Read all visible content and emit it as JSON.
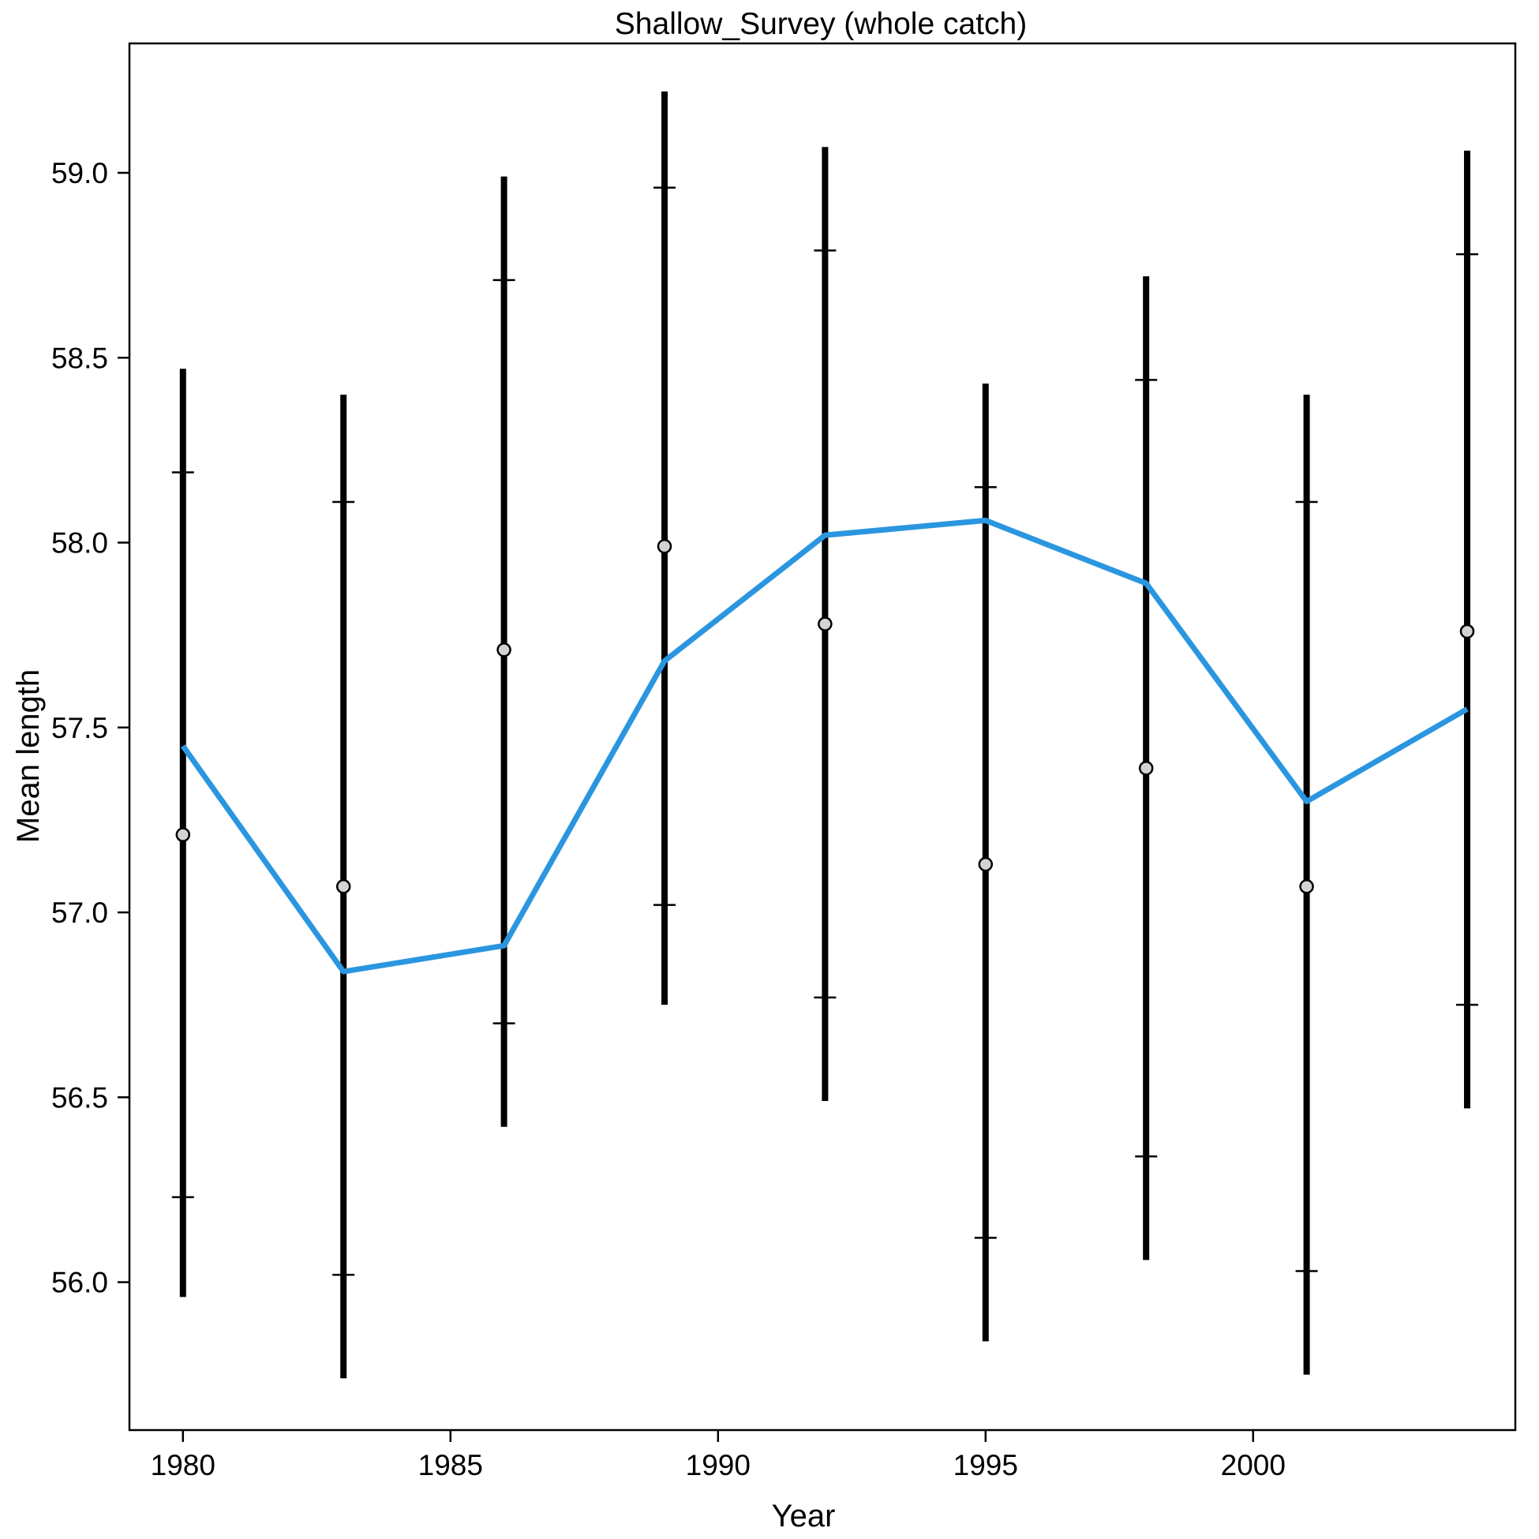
{
  "chart_data": {
    "type": "line",
    "title": "Shallow_Survey (whole catch)",
    "xlabel": "Year",
    "ylabel": "Mean length",
    "xlim": [
      1979.0,
      2004.9
    ],
    "ylim": [
      55.6,
      59.35
    ],
    "x_ticks": [
      "1980",
      "1985",
      "1990",
      "1995",
      "2000"
    ],
    "y_ticks": [
      "56.0",
      "56.5",
      "57.0",
      "57.5",
      "58.0",
      "58.5",
      "59.0"
    ],
    "x": [
      1980,
      1983,
      1986,
      1989,
      1992,
      1995,
      1998,
      2001,
      2004
    ],
    "observed": [
      57.21,
      57.07,
      57.71,
      57.99,
      57.78,
      57.13,
      57.39,
      57.07,
      57.76
    ],
    "expected": [
      57.45,
      56.84,
      56.91,
      57.68,
      58.02,
      58.06,
      57.89,
      57.3,
      57.55
    ],
    "interval_outer": [
      [
        55.96,
        58.47
      ],
      [
        55.74,
        58.4
      ],
      [
        56.42,
        58.99
      ],
      [
        56.75,
        59.22
      ],
      [
        56.49,
        59.07
      ],
      [
        55.84,
        58.43
      ],
      [
        56.06,
        58.72
      ],
      [
        55.75,
        58.4
      ],
      [
        56.47,
        59.06
      ]
    ],
    "interval_inner": [
      [
        56.23,
        58.19
      ],
      [
        56.02,
        58.11
      ],
      [
        56.7,
        58.71
      ],
      [
        57.02,
        58.96
      ],
      [
        56.77,
        58.79
      ],
      [
        56.12,
        58.15
      ],
      [
        56.34,
        58.44
      ],
      [
        56.03,
        58.11
      ],
      [
        56.75,
        58.78
      ]
    ],
    "grid": false,
    "colors": {
      "expected_line": "#2b96e0",
      "interval": "#000000",
      "point_fill": "#d3d3d3",
      "point_stroke": "#000000"
    }
  }
}
